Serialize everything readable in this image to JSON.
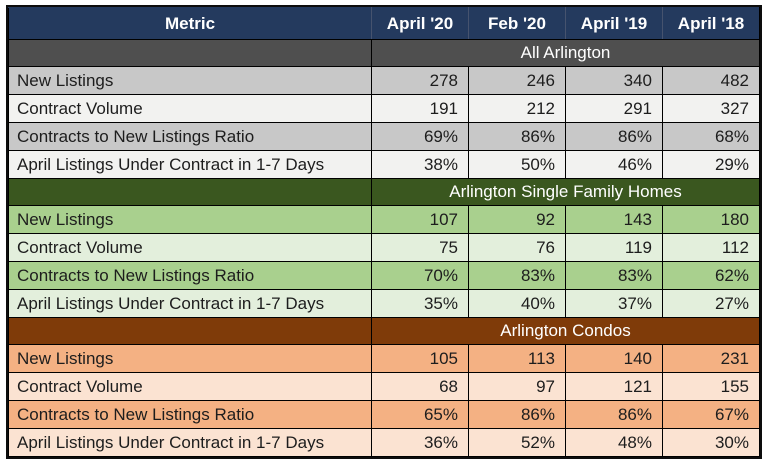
{
  "colors": {
    "header_bg": "#243A5E",
    "header_text": "#FFFFFF",
    "gray_section_header": "#4F4F4F",
    "gray_row_dark": "#C8C8C8",
    "gray_row_light": "#F2F2F0",
    "green_section_header": "#3A571F",
    "green_row_dark": "#A9D08E",
    "green_row_light": "#E3EFDC",
    "orange_section_header": "#7F3B09",
    "orange_row_dark": "#F4B183",
    "orange_row_light": "#FBE3D2",
    "border": "#000000"
  },
  "chart_data": {
    "type": "table",
    "columns": [
      "Metric",
      "April '20",
      "Feb '20",
      "April '19",
      "April '18"
    ],
    "sections": [
      {
        "title": "All Arlington",
        "theme": "gray",
        "rows": [
          {
            "metric": "New Listings",
            "values": [
              "278",
              "246",
              "340",
              "482"
            ]
          },
          {
            "metric": "Contract Volume",
            "values": [
              "191",
              "212",
              "291",
              "327"
            ]
          },
          {
            "metric": "Contracts to New Listings Ratio",
            "values": [
              "69%",
              "86%",
              "86%",
              "68%"
            ]
          },
          {
            "metric": "April Listings Under Contract in 1-7 Days",
            "values": [
              "38%",
              "50%",
              "46%",
              "29%"
            ]
          }
        ]
      },
      {
        "title": "Arlington Single Family Homes",
        "theme": "green",
        "rows": [
          {
            "metric": "New Listings",
            "values": [
              "107",
              "92",
              "143",
              "180"
            ]
          },
          {
            "metric": "Contract Volume",
            "values": [
              "75",
              "76",
              "119",
              "112"
            ]
          },
          {
            "metric": "Contracts to New Listings Ratio",
            "values": [
              "70%",
              "83%",
              "83%",
              "62%"
            ]
          },
          {
            "metric": "April Listings Under Contract in 1-7 Days",
            "values": [
              "35%",
              "40%",
              "37%",
              "27%"
            ]
          }
        ]
      },
      {
        "title": "Arlington Condos",
        "theme": "orange",
        "rows": [
          {
            "metric": "New Listings",
            "values": [
              "105",
              "113",
              "140",
              "231"
            ]
          },
          {
            "metric": "Contract Volume",
            "values": [
              "68",
              "97",
              "121",
              "155"
            ]
          },
          {
            "metric": "Contracts to New Listings Ratio",
            "values": [
              "65%",
              "86%",
              "86%",
              "67%"
            ]
          },
          {
            "metric": "April Listings Under Contract in 1-7 Days",
            "values": [
              "36%",
              "52%",
              "48%",
              "30%"
            ]
          }
        ]
      }
    ]
  }
}
